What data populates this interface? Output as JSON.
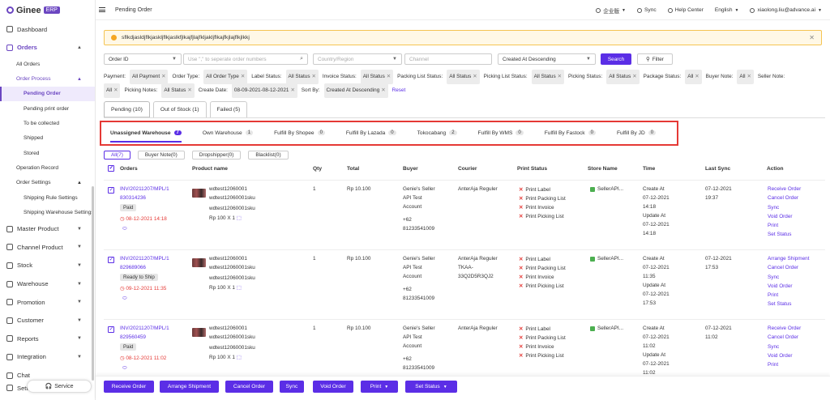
{
  "app": {
    "logo": "Ginee",
    "logo_badge": "ERP"
  },
  "sidebar": {
    "items": [
      {
        "label": "Dashboard"
      },
      {
        "label": "Orders"
      },
      {
        "label": "All Orders"
      },
      {
        "label": "Order Process"
      },
      {
        "label": "Pending Order"
      },
      {
        "label": "Pending print order"
      },
      {
        "label": "To be collected"
      },
      {
        "label": "Shipped"
      },
      {
        "label": "Stored"
      },
      {
        "label": "Operation Record"
      },
      {
        "label": "Order Settings"
      },
      {
        "label": "Shipping Rule Settings"
      },
      {
        "label": "Shipping Warehouse Settings"
      },
      {
        "label": "Master Product"
      },
      {
        "label": "Channel Product"
      },
      {
        "label": "Stock"
      },
      {
        "label": "Warehouse"
      },
      {
        "label": "Promotion"
      },
      {
        "label": "Customer"
      },
      {
        "label": "Reports"
      },
      {
        "label": "Integration"
      },
      {
        "label": "Chat"
      },
      {
        "label": "Settings"
      }
    ],
    "service": "Service"
  },
  "header": {
    "title": "Pending Order",
    "workspace": "企业版",
    "sync": "Sync",
    "help": "Help Center",
    "language": "English",
    "user": "xiaolong.liu@advance.ai"
  },
  "notice": {
    "text": "sflkdjasldjflkjaskljflkjaslkfjlkajfjlajfkljakljflkajfkjlajflkjlkkj"
  },
  "search": {
    "field": "Order ID",
    "placeholder": "Use \",\" to seperate order numbers",
    "region_placeholder": "Country/Region",
    "channel_placeholder": "Channel",
    "sort": "Created At Descending",
    "search_label": "Search",
    "filter_label": "Filter"
  },
  "chips": {
    "row1": [
      {
        "label": "Payment:",
        "tag": "All Payment"
      },
      {
        "label": "Order Type:",
        "tag": "All Order Type"
      },
      {
        "label": "Label Status:",
        "tag": "All Status"
      },
      {
        "label": "Invoice Status:",
        "tag": "All Status"
      },
      {
        "label": "Packing List Status:",
        "tag": "All Status"
      },
      {
        "label": "Picking List Status:",
        "tag": "All Status"
      },
      {
        "label": "Picking Status:",
        "tag": "All Status"
      },
      {
        "label": "Package Status:",
        "tag": "All"
      },
      {
        "label": "Buyer Note:",
        "tag": "All"
      },
      {
        "label": "Seller Note:",
        "tag": ""
      }
    ],
    "row2": [
      {
        "label": "",
        "tag": "All"
      },
      {
        "label": "Picking Notes:",
        "tag": "All Status"
      },
      {
        "label": "Create Date:",
        "tag": "08-09-2021-08-12-2021"
      },
      {
        "label": "Sort By:",
        "tag": "Created At Descending"
      }
    ],
    "reset": "Reset"
  },
  "tabs": [
    {
      "label": "Pending (10)"
    },
    {
      "label": "Out of Stock (1)"
    },
    {
      "label": "Failed (5)"
    }
  ],
  "subtabs": [
    {
      "label": "Unassigned Warehouse",
      "count": "7"
    },
    {
      "label": "Own Warehouse",
      "count": "1"
    },
    {
      "label": "Fulfill By Shopee",
      "count": "0"
    },
    {
      "label": "Fulfill By Lazada",
      "count": "0"
    },
    {
      "label": "Tokocabang",
      "count": "2"
    },
    {
      "label": "Fulfill By WMS",
      "count": "0"
    },
    {
      "label": "Fulfill By Fastock",
      "count": "0"
    },
    {
      "label": "Fulfill By JD",
      "count": "0"
    }
  ],
  "pills": [
    {
      "label": "All(7)"
    },
    {
      "label": "Buyer Note(0)"
    },
    {
      "label": "Dropshipper(0)"
    },
    {
      "label": "Blacklist(0)"
    }
  ],
  "table": {
    "headers": [
      "Orders",
      "Product name",
      "Qty",
      "Total",
      "Buyer",
      "Courier",
      "Print Status",
      "Store Name",
      "Time",
      "Last Sync",
      "Action"
    ],
    "rows": [
      {
        "order_l1": "INV/20211207/MPL/1",
        "order_l2": "830314236",
        "status": "Paid",
        "date": "08-12-2021 14:18",
        "prod1": "wdtest12060001",
        "prod2": "wdtest12060001sku",
        "prod3": "wdtest12060001sku",
        "price": "Rp 100 X 1",
        "qty": "1",
        "total": "Rp 10.100",
        "buyer1": "Genie's Seller",
        "buyer2": "API Test",
        "buyer3": "Account",
        "phone1": "+62",
        "phone2": "81233541009",
        "courier1": "AnterAja Reguler",
        "courier2": "",
        "courier3": "",
        "print": [
          "Print Label",
          "Print Packing List",
          "Print Invoice",
          "Print Picking List"
        ],
        "store": "SellerAPI...",
        "time": [
          "Create At",
          "07-12-2021",
          "14:18",
          "Update At",
          "07-12-2021",
          "14:18"
        ],
        "sync1": "07-12-2021",
        "sync2": "19:37",
        "actions": [
          "Receive Order",
          "Cancel Order",
          "Sync",
          "Void Order",
          "Print",
          "Set Status"
        ]
      },
      {
        "order_l1": "INV/20211207/MPL/1",
        "order_l2": "829689066",
        "status": "Ready to Ship",
        "date": "09-12-2021 11:35",
        "prod1": "wdtest12060001",
        "prod2": "wdtest12060001sku",
        "prod3": "wdtest12060001sku",
        "price": "Rp 100 X 1",
        "qty": "1",
        "total": "Rp 10.100",
        "buyer1": "Genie's Seller",
        "buyer2": "API Test",
        "buyer3": "Account",
        "phone1": "+62",
        "phone2": "81233541009",
        "courier1": "AnterAja Reguler",
        "courier2": "TKAA-",
        "courier3": "33Q2D5R3QJ2",
        "print": [
          "Print Label",
          "Print Packing List",
          "Print Invoice",
          "Print Picking List"
        ],
        "store": "SellerAPI...",
        "time": [
          "Create At",
          "07-12-2021",
          "11:35",
          "Update At",
          "07-12-2021",
          "17:53"
        ],
        "sync1": "07-12-2021",
        "sync2": "17:53",
        "actions": [
          "Arrange Shipment",
          "Cancel Order",
          "Sync",
          "Void Order",
          "Print",
          "Set Status"
        ]
      },
      {
        "order_l1": "INV/20211207/MPL/1",
        "order_l2": "829560459",
        "status": "Paid",
        "date": "08-12-2021 11:02",
        "prod1": "wdtest12060001",
        "prod2": "wdtest12060001sku",
        "prod3": "wdtest12060001sku",
        "price": "Rp 100 X 1",
        "qty": "1",
        "total": "Rp 10.100",
        "buyer1": "Genie's Seller",
        "buyer2": "API Test",
        "buyer3": "Account",
        "phone1": "+62",
        "phone2": "81233541009",
        "courier1": "AnterAja Reguler",
        "courier2": "",
        "courier3": "",
        "print": [
          "Print Label",
          "Print Packing List",
          "Print Invoice",
          "Print Picking List"
        ],
        "store": "SellerAPI...",
        "time": [
          "Create At",
          "07-12-2021",
          "11:02",
          "Update At",
          "07-12-2021",
          "11:02"
        ],
        "sync1": "07-12-2021",
        "sync2": "11:02",
        "actions": [
          "Receive Order",
          "Cancel Order",
          "Sync",
          "Void Order",
          "Print",
          ""
        ]
      }
    ]
  },
  "bottom": {
    "receive": "Receive Order",
    "arrange": "Arrange Shipment",
    "cancel": "Cancel Order",
    "sync": "Sync",
    "void": "Void Order",
    "print": "Print",
    "set_status": "Set Status"
  },
  "colors": {
    "accent": "#5b2ee6",
    "highlight": "#e53935",
    "warning_bg": "#fff8e6"
  }
}
